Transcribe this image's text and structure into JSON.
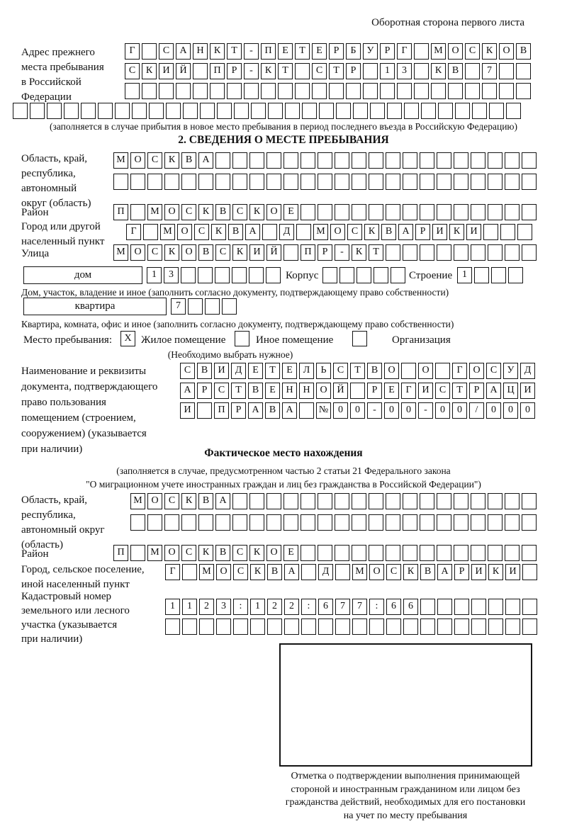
{
  "page": {
    "header_note": "Оборотная сторона первого листа"
  },
  "colors": {
    "ink": "#141414",
    "paper": "#ffffff"
  },
  "prev_address": {
    "label_lines": [
      "Адрес прежнего",
      "места пребывания",
      "в Российской",
      "Федерации"
    ],
    "rows": [
      [
        "Г",
        "",
        "С",
        "А",
        "Н",
        "К",
        "Т",
        "-",
        "П",
        "Е",
        "Т",
        "Е",
        "Р",
        "Б",
        "У",
        "Р",
        "Г",
        "",
        "М",
        "О",
        "С",
        "К",
        "О",
        "В"
      ],
      [
        "С",
        "К",
        "И",
        "Й",
        "",
        "П",
        "Р",
        "-",
        "К",
        "Т",
        "",
        "С",
        "Т",
        "Р",
        "",
        "1",
        "3",
        "",
        "К",
        "В",
        "",
        "7",
        "",
        ""
      ],
      [
        "",
        "",
        "",
        "",
        "",
        "",
        "",
        "",
        "",
        "",
        "",
        "",
        "",
        "",
        "",
        "",
        "",
        "",
        "",
        "",
        "",
        "",
        "",
        ""
      ],
      [
        "",
        "",
        "",
        "",
        "",
        "",
        "",
        "",
        "",
        "",
        "",
        "",
        "",
        "",
        "",
        "",
        "",
        "",
        "",
        "",
        "",
        "",
        "",
        "",
        "",
        "",
        "",
        "",
        "",
        ""
      ]
    ],
    "note": "(заполняется в случае прибытия в новое место пребывания в период последнего въезда в Российскую Федерацию)"
  },
  "section2": {
    "title": "2. СВЕДЕНИЯ О МЕСТЕ ПРЕБЫВАНИЯ",
    "region": {
      "label_lines": [
        "Область, край,",
        "республика,",
        "автономный",
        "округ (область)"
      ],
      "rows": [
        [
          "М",
          "О",
          "С",
          "К",
          "В",
          "А",
          "",
          "",
          "",
          "",
          "",
          "",
          "",
          "",
          "",
          "",
          "",
          "",
          "",
          "",
          "",
          "",
          "",
          "",
          ""
        ],
        [
          "",
          "",
          "",
          "",
          "",
          "",
          "",
          "",
          "",
          "",
          "",
          "",
          "",
          "",
          "",
          "",
          "",
          "",
          "",
          "",
          "",
          "",
          "",
          "",
          ""
        ]
      ]
    },
    "district": {
      "label": "Район",
      "cells": [
        "П",
        "",
        "М",
        "О",
        "С",
        "К",
        "В",
        "С",
        "К",
        "О",
        "Е",
        "",
        "",
        "",
        "",
        "",
        "",
        "",
        "",
        "",
        "",
        "",
        "",
        "",
        ""
      ]
    },
    "city": {
      "label_lines": [
        "Город или другой",
        "населенный пункт"
      ],
      "cells": [
        "Г",
        "",
        "М",
        "О",
        "С",
        "К",
        "В",
        "А",
        "",
        "Д",
        "",
        "М",
        "О",
        "С",
        "К",
        "В",
        "А",
        "Р",
        "И",
        "К",
        "И",
        "",
        "",
        ""
      ]
    },
    "street": {
      "label": "Улица",
      "cells": [
        "М",
        "О",
        "С",
        "К",
        "О",
        "В",
        "С",
        "К",
        "И",
        "Й",
        "",
        "П",
        "Р",
        "-",
        "К",
        "Т",
        "",
        "",
        "",
        "",
        "",
        "",
        "",
        "",
        ""
      ]
    },
    "house": {
      "box_label": "дом",
      "cells": [
        "1",
        "3",
        "",
        "",
        "",
        "",
        "",
        ""
      ],
      "korpus_label": "Корпус",
      "korpus_cells": [
        "",
        "",
        "",
        "",
        ""
      ],
      "stroenie_label": "Строение",
      "stroenie_cells": [
        "1",
        "",
        "",
        ""
      ]
    },
    "house_note": "Дом, участок, владение и иное (заполнить согласно документу, подтверждающему право собственности)",
    "apartment": {
      "box_label": "квартира",
      "cells": [
        "7",
        "",
        "",
        ""
      ]
    },
    "apartment_note": "Квартира, комната, офис и иное (заполнить согласно документу, подтверждающему право собственности)",
    "stay_place": {
      "label": "Место пребывания:",
      "options": [
        {
          "mark": "X",
          "label": "Жилое помещение"
        },
        {
          "mark": "",
          "label": "Иное помещение"
        },
        {
          "mark": "",
          "label": "Организация"
        }
      ],
      "note": "(Необходимо выбрать нужное)"
    },
    "document": {
      "label_lines": [
        "Наименование и реквизиты",
        "документа, подтверждающего",
        "право пользования",
        "помещением (строением,",
        "сооружением) (указывается",
        "при наличии)"
      ],
      "rows": [
        [
          "С",
          "В",
          "И",
          "Д",
          "Е",
          "Т",
          "Е",
          "Л",
          "Ь",
          "С",
          "Т",
          "В",
          "О",
          "",
          "О",
          "",
          "Г",
          "О",
          "С",
          "У",
          "Д"
        ],
        [
          "А",
          "Р",
          "С",
          "Т",
          "В",
          "Е",
          "Н",
          "Н",
          "О",
          "Й",
          "",
          "Р",
          "Е",
          "Г",
          "И",
          "С",
          "Т",
          "Р",
          "А",
          "Ц",
          "И"
        ],
        [
          "И",
          "",
          "П",
          "Р",
          "А",
          "В",
          "А",
          "",
          "№",
          "0",
          "0",
          "-",
          "0",
          "0",
          "-",
          "0",
          "0",
          "/",
          "0",
          "0",
          "0"
        ]
      ]
    }
  },
  "actual_location": {
    "title": "Фактическое место нахождения",
    "note_lines": [
      "(заполняется в случае, предусмотренном частью 2 статьи 21 Федерального закона",
      "\"О миграционном учете иностранных граждан и лиц без гражданства в Российской Федерации\")"
    ],
    "region": {
      "label_lines": [
        "Область, край,",
        "республика,",
        "автономный округ",
        "(область)"
      ],
      "rows": [
        [
          "М",
          "О",
          "С",
          "К",
          "В",
          "А",
          "",
          "",
          "",
          "",
          "",
          "",
          "",
          "",
          "",
          "",
          "",
          "",
          "",
          "",
          "",
          "",
          "",
          ""
        ],
        [
          "",
          "",
          "",
          "",
          "",
          "",
          "",
          "",
          "",
          "",
          "",
          "",
          "",
          "",
          "",
          "",
          "",
          "",
          "",
          "",
          "",
          "",
          "",
          ""
        ]
      ]
    },
    "district": {
      "label": "Район",
      "cells": [
        "П",
        "",
        "М",
        "О",
        "С",
        "К",
        "В",
        "С",
        "К",
        "О",
        "Е",
        "",
        "",
        "",
        "",
        "",
        "",
        "",
        "",
        "",
        "",
        "",
        "",
        "",
        ""
      ]
    },
    "city": {
      "label_lines": [
        "Город, сельское поселение,",
        "иной населенный пункт"
      ],
      "cells": [
        "Г",
        "",
        "М",
        "О",
        "С",
        "К",
        "В",
        "А",
        "",
        "Д",
        "",
        "М",
        "О",
        "С",
        "К",
        "В",
        "А",
        "Р",
        "И",
        "К",
        "И",
        ""
      ]
    },
    "cadastral": {
      "label_lines": [
        "Кадастровый номер",
        "земельного или лесного",
        "участка (указывается",
        "при наличии)"
      ],
      "rows": [
        [
          "1",
          "1",
          "2",
          "3",
          ":",
          "1",
          "2",
          "2",
          ":",
          "6",
          "7",
          "7",
          ":",
          "6",
          "6",
          "",
          "",
          "",
          "",
          "",
          "",
          ""
        ],
        [
          "",
          "",
          "",
          "",
          "",
          "",
          "",
          "",
          "",
          "",
          "",
          "",
          "",
          "",
          "",
          "",
          "",
          "",
          "",
          "",
          "",
          ""
        ]
      ]
    }
  },
  "confirmation": {
    "note_lines": [
      "Отметка о подтверждении выполнения принимающей",
      "стороной и иностранным гражданином или лицом без",
      "гражданства действий, необходимых для его постановки",
      "на учет по месту пребывания"
    ]
  }
}
